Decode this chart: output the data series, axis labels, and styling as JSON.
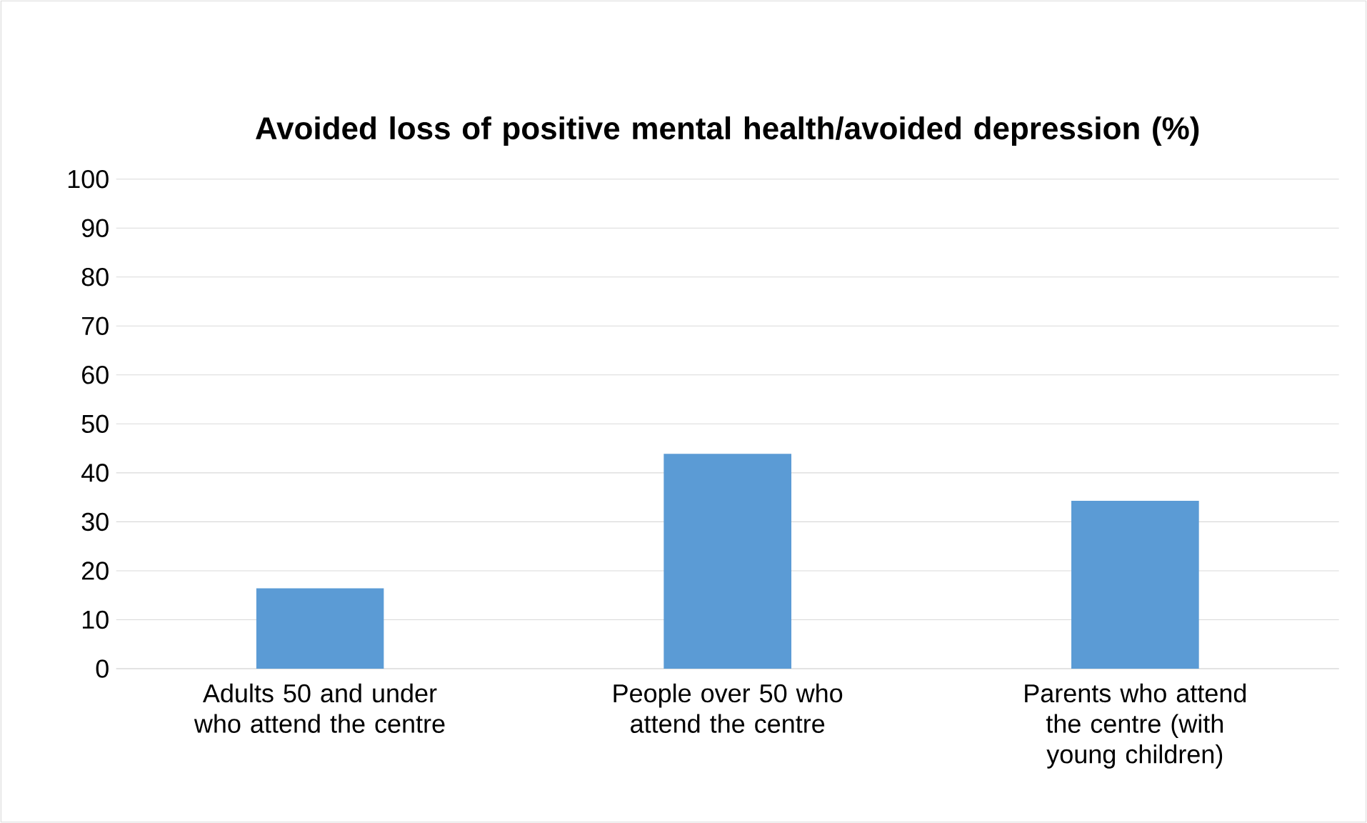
{
  "chart_data": {
    "type": "bar",
    "title": "Avoided loss of positive mental health/avoided depression (%)",
    "categories": [
      "Adults 50 and under who attend the centre",
      "People over 50 who attend the centre",
      "Parents who attend the centre (with young children)"
    ],
    "values": [
      16.4,
      43.9,
      34.3
    ],
    "color": "#5b9bd5",
    "ylim": [
      0,
      100
    ],
    "yticks": [
      0,
      10,
      20,
      30,
      40,
      50,
      60,
      70,
      80,
      90,
      100
    ],
    "grid": "y"
  }
}
